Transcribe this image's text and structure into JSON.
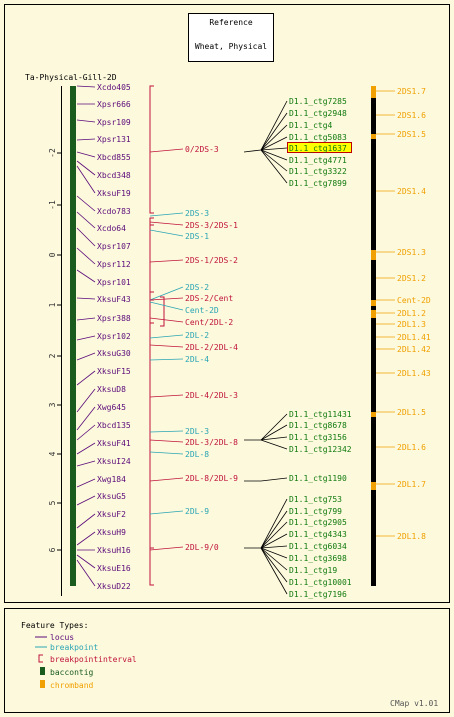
{
  "colors": {
    "background": "#fdf9dc",
    "locus": "#5a0a7a",
    "breakpoint": "#2aa5b5",
    "interval": "#c0143c",
    "baccontig": "#1a5c1e",
    "chromband": "#f0a000",
    "contig": "#0f7a0f",
    "line": "#000000",
    "highlight": "#ffff00"
  },
  "reference": {
    "title": "Reference",
    "subtitle": "Wheat, Physical"
  },
  "map_title": "Ta-Physical-Gill-2D",
  "scale_ticks": [
    "-2",
    "-1",
    "0",
    "1",
    "2",
    "3",
    "4",
    "5",
    "6"
  ],
  "loci": [
    {
      "label": "Xcdo405"
    },
    {
      "label": "Xpsr666"
    },
    {
      "label": "Xpsr109"
    },
    {
      "label": "Xpsr131"
    },
    {
      "label": "Xbcd855"
    },
    {
      "label": "Xbcd348"
    },
    {
      "label": "XksuF19"
    },
    {
      "label": "Xcdo783"
    },
    {
      "label": "Xcdo64"
    },
    {
      "label": "Xpsr107"
    },
    {
      "label": "Xpsr112"
    },
    {
      "label": "Xpsr101"
    },
    {
      "label": "XksuF43"
    },
    {
      "label": "Xpsr388"
    },
    {
      "label": "Xpsr102"
    },
    {
      "label": "XksuG30"
    },
    {
      "label": "XksuF15"
    },
    {
      "label": "XksuD8"
    },
    {
      "label": "Xwg645"
    },
    {
      "label": "Xbcd135"
    },
    {
      "label": "XksuF41"
    },
    {
      "label": "XksuI24"
    },
    {
      "label": "Xwg184"
    },
    {
      "label": "XksuG5"
    },
    {
      "label": "XksuF2"
    },
    {
      "label": "XksuH9"
    },
    {
      "label": "XksuH16"
    },
    {
      "label": "XksuE16"
    },
    {
      "label": "XksuD22"
    }
  ],
  "features": [
    {
      "label": "0/2DS-3",
      "type": "interval"
    },
    {
      "label": "2DS-3",
      "type": "breakpoint"
    },
    {
      "label": "2DS-3/2DS-1",
      "type": "interval"
    },
    {
      "label": "2DS-1",
      "type": "breakpoint"
    },
    {
      "label": "2DS-1/2DS-2",
      "type": "interval"
    },
    {
      "label": "2DS-2",
      "type": "breakpoint"
    },
    {
      "label": "2DS-2/Cent",
      "type": "interval"
    },
    {
      "label": "Cent-2D",
      "type": "breakpoint"
    },
    {
      "label": "Cent/2DL-2",
      "type": "interval"
    },
    {
      "label": "2DL-2",
      "type": "breakpoint"
    },
    {
      "label": "2DL-2/2DL-4",
      "type": "interval"
    },
    {
      "label": "2DL-4",
      "type": "breakpoint"
    },
    {
      "label": "2DL-4/2DL-3",
      "type": "interval"
    },
    {
      "label": "2DL-3",
      "type": "breakpoint"
    },
    {
      "label": "2DL-3/2DL-8",
      "type": "interval"
    },
    {
      "label": "2DL-8",
      "type": "breakpoint"
    },
    {
      "label": "2DL-8/2DL-9",
      "type": "interval"
    },
    {
      "label": "2DL-9",
      "type": "breakpoint"
    },
    {
      "label": "2DL-9/0",
      "type": "interval"
    }
  ],
  "contig_groups": [
    {
      "contigs": [
        "D1.1_ctg7285",
        "D1.1_ctg2948",
        "D1.1_ctg4",
        "D1.1_ctg5083",
        "D1.1_ctg1637",
        "D1.1_ctg4771",
        "D1.1_ctg3322",
        "D1.1_ctg7899"
      ],
      "highlighted": "D1.1_ctg1637"
    },
    {
      "contigs": [
        "D1.1_ctg11431",
        "D1.1_ctg8678",
        "D1.1_ctg3156",
        "D1.1_ctg12342"
      ]
    },
    {
      "contigs": [
        "D1.1_ctg1190"
      ]
    },
    {
      "contigs": [
        "D1.1_ctg753",
        "D1.1_ctg799",
        "D1.1_ctg2905",
        "D1.1_ctg4343",
        "D1.1_ctg6034",
        "D1.1_ctg3698",
        "D1.1_ctg19",
        "D1.1_ctg10001",
        "D1.1_ctg7196"
      ]
    }
  ],
  "bands": [
    {
      "label": "2DS1.7"
    },
    {
      "label": "2DS1.6"
    },
    {
      "label": "2DS1.5"
    },
    {
      "label": "2DS1.4"
    },
    {
      "label": "2DS1.3"
    },
    {
      "label": "2DS1.2"
    },
    {
      "label": "Cent-2D"
    },
    {
      "label": "2DL1.2"
    },
    {
      "label": "2DL1.3"
    },
    {
      "label": "2DL1.41"
    },
    {
      "label": "2DL1.42"
    },
    {
      "label": "2DL1.43"
    },
    {
      "label": "2DL1.5"
    },
    {
      "label": "2DL1.6"
    },
    {
      "label": "2DL1.7"
    },
    {
      "label": "2DL1.8"
    }
  ],
  "legend": {
    "title": "Feature Types:",
    "items": [
      {
        "label": "locus",
        "symbol": "line",
        "color": "#5a0a7a"
      },
      {
        "label": "breakpoint",
        "symbol": "line",
        "color": "#2aa5b5"
      },
      {
        "label": "breakpointinterval",
        "symbol": "bracket",
        "color": "#c0143c"
      },
      {
        "label": "baccontig",
        "symbol": "box",
        "color": "#1a5c1e"
      },
      {
        "label": "chromband",
        "symbol": "box",
        "color": "#f0a000"
      }
    ]
  },
  "footer": "CMap v1.01"
}
